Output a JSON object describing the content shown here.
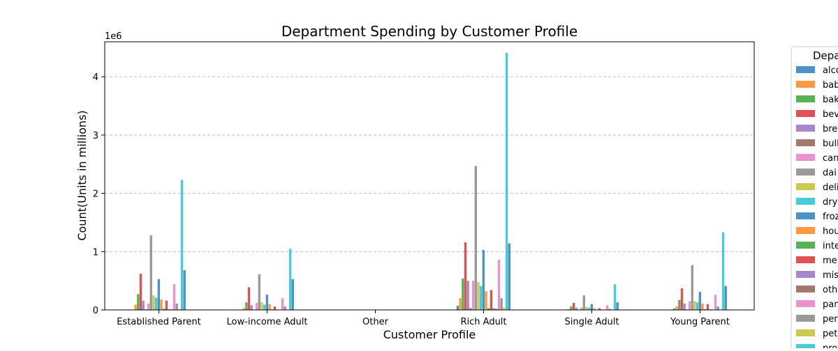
{
  "chart_data": {
    "type": "bar",
    "title": "Department Spending by Customer Profile",
    "xlabel": "Customer Profile",
    "ylabel": "Count(Units in millions)",
    "y_offset_label": "1e6",
    "y_scale": 1000000,
    "ylim": [
      0,
      4600000
    ],
    "yticks": [
      0,
      1000000,
      2000000,
      3000000,
      4000000
    ],
    "ytick_labels": [
      "0",
      "1",
      "2",
      "3",
      "4"
    ],
    "grid": "y-dashed",
    "legend_title": "Department",
    "legend_labels_visible": [
      "alco",
      "bab",
      "bak",
      "bev",
      "bre",
      "bull",
      "can",
      "dai",
      "deli",
      "dry",
      "froz",
      "hou",
      "inte",
      "me",
      "mis",
      "oth",
      "pan",
      "per",
      "pet",
      "pro"
    ],
    "legend_placement": "right, outside plot (partially cut off)",
    "categories": [
      "Established Parent",
      "Low-income Adult",
      "Other",
      "Rich Adult",
      "Single Adult",
      "Young Parent"
    ],
    "series": [
      {
        "name": "",
        "color": "#1f77b4",
        "values": [
          5000,
          2000,
          0,
          70000,
          2000,
          25000
        ]
      },
      {
        "name": "",
        "color": "#ff7f0e",
        "values": [
          90000,
          30000,
          0,
          200000,
          15000,
          60000
        ]
      },
      {
        "name": "",
        "color": "#2ca02c",
        "values": [
          270000,
          130000,
          0,
          540000,
          60000,
          170000
        ]
      },
      {
        "name": "",
        "color": "#d62728",
        "values": [
          620000,
          390000,
          0,
          1160000,
          120000,
          370000
        ]
      },
      {
        "name": "",
        "color": "#9467bd",
        "values": [
          160000,
          80000,
          0,
          500000,
          40000,
          110000
        ]
      },
      {
        "name": "",
        "color": "#8c564b",
        "values": [
          10000,
          5000,
          0,
          30000,
          2000,
          8000
        ]
      },
      {
        "name": "",
        "color": "#e377c2",
        "values": [
          110000,
          120000,
          0,
          500000,
          40000,
          150000
        ]
      },
      {
        "name": "",
        "color": "#7f7f7f",
        "values": [
          1280000,
          610000,
          0,
          2470000,
          250000,
          770000
        ]
      },
      {
        "name": "",
        "color": "#bcbd22",
        "values": [
          250000,
          130000,
          0,
          480000,
          50000,
          150000
        ]
      },
      {
        "name": "",
        "color": "#17becf",
        "values": [
          210000,
          90000,
          0,
          410000,
          40000,
          130000
        ]
      },
      {
        "name": "",
        "color": "#1f77b4",
        "values": [
          530000,
          260000,
          0,
          1030000,
          100000,
          310000
        ]
      },
      {
        "name": "",
        "color": "#ff7f0e",
        "values": [
          180000,
          100000,
          0,
          320000,
          30000,
          110000
        ]
      },
      {
        "name": "",
        "color": "#2ca02c",
        "values": [
          20000,
          10000,
          0,
          30000,
          4000,
          12000
        ]
      },
      {
        "name": "",
        "color": "#d62728",
        "values": [
          160000,
          60000,
          0,
          340000,
          30000,
          100000
        ]
      },
      {
        "name": "",
        "color": "#9467bd",
        "values": [
          10000,
          5000,
          0,
          30000,
          3000,
          10000
        ]
      },
      {
        "name": "",
        "color": "#8c564b",
        "values": [
          10000,
          5000,
          0,
          20000,
          2000,
          6000
        ]
      },
      {
        "name": "",
        "color": "#e377c2",
        "values": [
          440000,
          200000,
          0,
          860000,
          80000,
          260000
        ]
      },
      {
        "name": "",
        "color": "#7f7f7f",
        "values": [
          110000,
          60000,
          0,
          200000,
          20000,
          60000
        ]
      },
      {
        "name": "",
        "color": "#bcbd22",
        "values": [
          10000,
          5000,
          0,
          40000,
          3000,
          8000
        ]
      },
      {
        "name": "",
        "color": "#17becf",
        "values": [
          2230000,
          1050000,
          0,
          4410000,
          440000,
          1330000
        ]
      },
      {
        "name": "",
        "color": "#1f77b4",
        "values": [
          680000,
          530000,
          0,
          1140000,
          130000,
          410000
        ]
      }
    ]
  }
}
